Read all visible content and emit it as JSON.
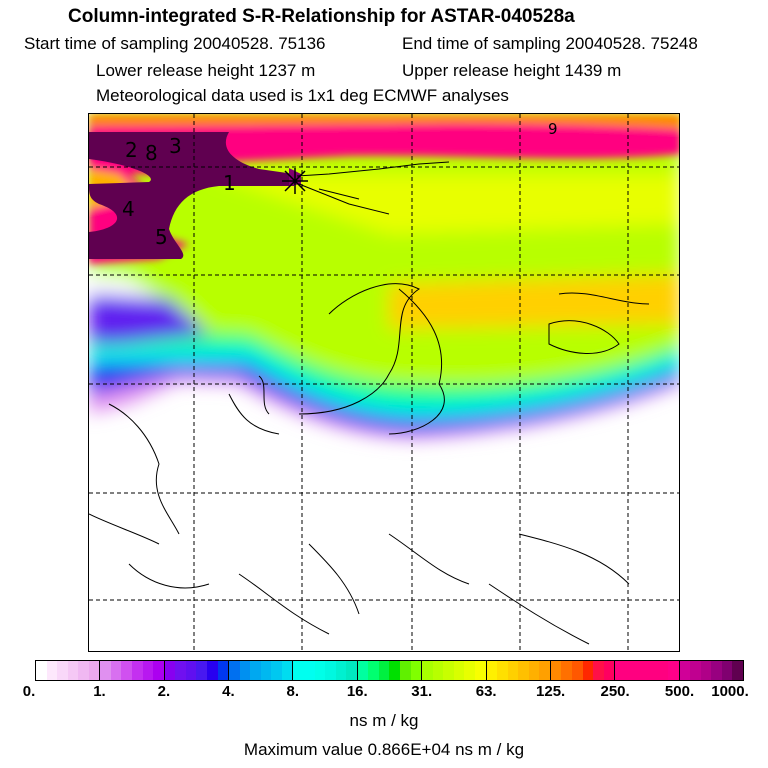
{
  "header": {
    "title": "Column-integrated S-R-Relationship for ASTAR-040528a",
    "start_time": "Start time of sampling 20040528. 75136",
    "end_time": "End time of sampling 20040528. 75248",
    "lower_height": "Lower release height 1237 m",
    "upper_height": "Upper release height 1439 m",
    "met_data": "Meteorological data used is 1x1 deg ECMWF analyses"
  },
  "map": {
    "labels": [
      "2",
      "8",
      "3",
      "1",
      "4",
      "5",
      "9"
    ],
    "release_marker": "release-point-star"
  },
  "colorbar": {
    "ticks": [
      "0.",
      "1.",
      "2.",
      "4.",
      "8.",
      "16.",
      "31.",
      "63.",
      "125.",
      "250.",
      "500.",
      "1000."
    ],
    "groups": [
      [
        "#ffffff",
        "#fde8fc",
        "#f9d8f9",
        "#f5c8f5",
        "#f0b8f2",
        "#eca8ee"
      ],
      [
        "#e090f0",
        "#d870f0",
        "#d050f0",
        "#c430f0",
        "#b818f0",
        "#ac00f0"
      ],
      [
        "#8800f0",
        "#7010f0",
        "#6010f0",
        "#4818f0",
        "#2800f0",
        "#0038f0"
      ],
      [
        "#0070f0",
        "#0090f0",
        "#00a8f0",
        "#00b8f0",
        "#00c8f0",
        "#00dcf0"
      ],
      [
        "#00fff0",
        "#00fff0",
        "#00ffe8",
        "#00f8e0",
        "#00f0d0",
        "#00e8c0"
      ],
      [
        "#00ffa0",
        "#00ff70",
        "#00f040",
        "#00e000",
        "#60f000",
        "#80ff00"
      ],
      [
        "#a8ff00",
        "#b8ff00",
        "#c8ff00",
        "#d8ff00",
        "#e8ff00",
        "#f8ff00"
      ],
      [
        "#fff000",
        "#ffe000",
        "#ffd000",
        "#ffc000",
        "#ffb000",
        "#ffa000"
      ],
      [
        "#ff8800",
        "#ff7000",
        "#ff5800",
        "#ff2800",
        "#ff1048",
        "#ff0060"
      ],
      [
        "#ff0080",
        "#ff0080",
        "#ff0080",
        "#ff0080",
        "#ff0080",
        "#ff0088"
      ],
      [
        "#d00098",
        "#c00090",
        "#b00088",
        "#980080",
        "#800070",
        "#600050"
      ]
    ],
    "unit": "ns m / kg",
    "max_value": "Maximum value  0.866E+04 ns m / kg"
  }
}
